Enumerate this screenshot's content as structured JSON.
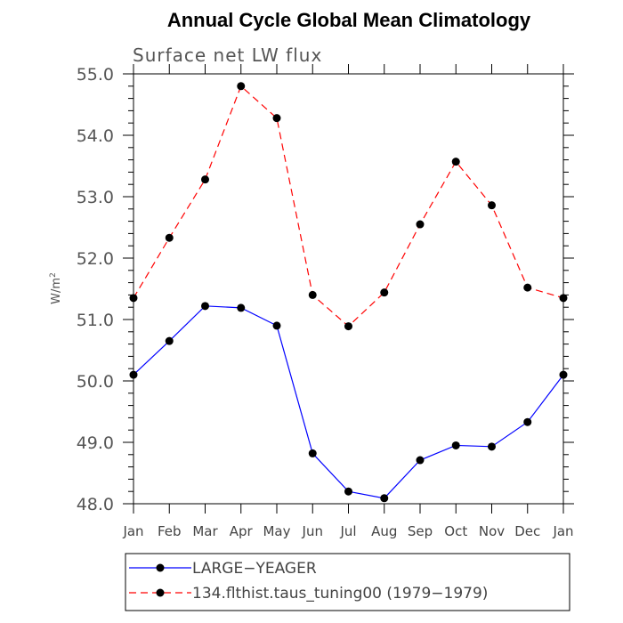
{
  "chart_data": {
    "type": "line",
    "title": "Annual Cycle Global Mean Climatology",
    "subtitle": "Surface net LW flux",
    "ylabel": "W/m",
    "ylabel_superscript": "2",
    "categories": [
      "Jan",
      "Feb",
      "Mar",
      "Apr",
      "May",
      "Jun",
      "Jul",
      "Aug",
      "Sep",
      "Oct",
      "Nov",
      "Dec",
      "Jan"
    ],
    "ylim": [
      48.0,
      55.0
    ],
    "yticks": [
      "48.0",
      "49.0",
      "50.0",
      "51.0",
      "52.0",
      "53.0",
      "54.0",
      "55.0"
    ],
    "series": [
      {
        "name": "LARGE−YEAGER",
        "color": "#0000ff",
        "dash": "solid",
        "values": [
          50.1,
          50.65,
          51.22,
          51.19,
          50.9,
          48.82,
          48.2,
          48.09,
          48.71,
          48.95,
          48.93,
          49.33,
          50.1
        ]
      },
      {
        "name": "134.flthist.taus_tuning00 (1979−1979)",
        "color": "#ff0000",
        "dash": "dashed",
        "values": [
          51.35,
          52.33,
          53.28,
          54.8,
          54.28,
          51.4,
          50.89,
          51.44,
          52.55,
          53.57,
          52.86,
          51.52,
          51.35
        ]
      }
    ],
    "grid": false,
    "legend_position": "bottom-left"
  }
}
